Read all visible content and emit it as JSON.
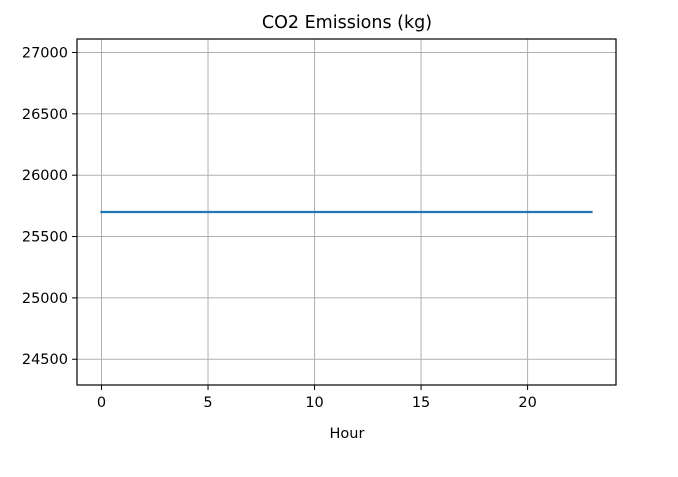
{
  "chart_data": {
    "type": "line",
    "title": "CO2 Emissions (kg)",
    "xlabel": "Hour",
    "ylabel": "",
    "xlim": [
      -1.15,
      24.15
    ],
    "ylim": [
      24290,
      27110
    ],
    "xticks": [
      0,
      5,
      10,
      15,
      20
    ],
    "yticks": [
      24500,
      25000,
      25500,
      26000,
      26500,
      27000
    ],
    "grid": true,
    "legend": "none",
    "series": [
      {
        "color": "#1f77b4",
        "x": [
          0,
          1,
          2,
          3,
          4,
          5,
          6,
          7,
          8,
          9,
          10,
          11,
          12,
          13,
          14,
          15,
          16,
          17,
          18,
          19,
          20,
          21,
          22,
          23
        ],
        "values": [
          25700,
          25700,
          25700,
          25700,
          25700,
          25700,
          25700,
          25700,
          25700,
          25700,
          25700,
          25700,
          25700,
          25700,
          25700,
          25700,
          25700,
          25700,
          25700,
          25700,
          25700,
          25700,
          25700,
          25700
        ]
      }
    ]
  }
}
